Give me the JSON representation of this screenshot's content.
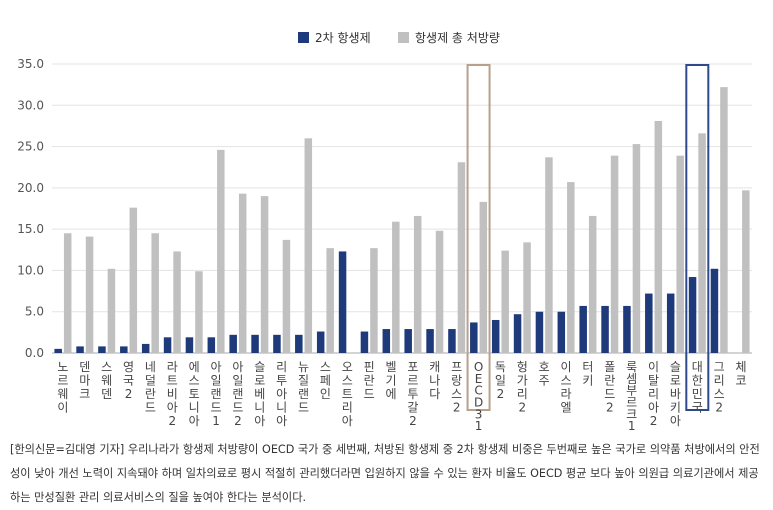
{
  "chart_data": {
    "type": "bar",
    "title": "",
    "xlabel": "",
    "ylabel": "",
    "ylim": [
      0,
      35
    ],
    "yticks": [
      "0.0",
      "5.0",
      "10.0",
      "15.0",
      "20.0",
      "25.0",
      "30.0",
      "35.0"
    ],
    "grid": true,
    "legend_position": "top-center",
    "highlight_color": "#b8a08c",
    "highlight_color_korea": "#2e4a8a",
    "categories": [
      "노르웨이",
      "덴마크",
      "스웨덴",
      "영국2",
      "네덜란드",
      "라트비아2",
      "에스토니아",
      "아일랜드1",
      "아일랜드2",
      "슬로베니아",
      "리투아니아",
      "뉴질랜드",
      "스페인",
      "오스트리아",
      "핀란드",
      "벨기에",
      "포르투갈2",
      "캐나다",
      "프랑스2",
      "OECD 31",
      "독일2",
      "헝가리2",
      "호주",
      "이스라엘",
      "터키",
      "폴란드2",
      "룩셈부르크1",
      "이탈리아2",
      "슬로바키아",
      "대한민국",
      "그리스2",
      "체코"
    ],
    "series": [
      {
        "name": "2차 항생제",
        "color": "#1f3a7a",
        "values": [
          0.5,
          0.8,
          0.8,
          0.8,
          1.1,
          1.9,
          1.9,
          1.9,
          2.2,
          2.2,
          2.2,
          2.2,
          2.6,
          12.3,
          2.6,
          2.9,
          2.9,
          2.9,
          2.9,
          3.7,
          4.0,
          4.7,
          5.0,
          5.0,
          5.7,
          5.7,
          5.7,
          7.2,
          7.2,
          9.2,
          10.2,
          null
        ]
      },
      {
        "name": "항생제 총 처방량",
        "color": "#c0c0c0",
        "values": [
          14.5,
          14.1,
          10.2,
          17.6,
          14.5,
          12.3,
          9.9,
          24.6,
          19.3,
          19.0,
          13.7,
          26.0,
          12.7,
          null,
          12.7,
          15.9,
          16.6,
          14.8,
          23.1,
          18.3,
          12.4,
          13.4,
          23.7,
          20.7,
          16.6,
          23.9,
          25.3,
          28.1,
          23.9,
          26.6,
          32.2,
          19.7
        ]
      }
    ],
    "annotations": [
      "OECD 31",
      "대한민국"
    ]
  },
  "caption": "[한의신문=김대영 기자] 우리나라가 항생제 처방량이 OECD 국가 중 세번째, 처방된 항생제 중 2차 항생제 비중은 두번째로 높은 국가로 의약품 처방에서의 안전성이 낮아 개선 노력이 지속돼야 하며 일차의료로 평시 적절히 관리했더라면 입원하지 않을 수 있는 환자 비율도 OECD 평균 보다 높아 의원급 의료기관에서 제공하는 만성질환 관리 의료서비스의 질을 높여야 한다는 분석이다."
}
